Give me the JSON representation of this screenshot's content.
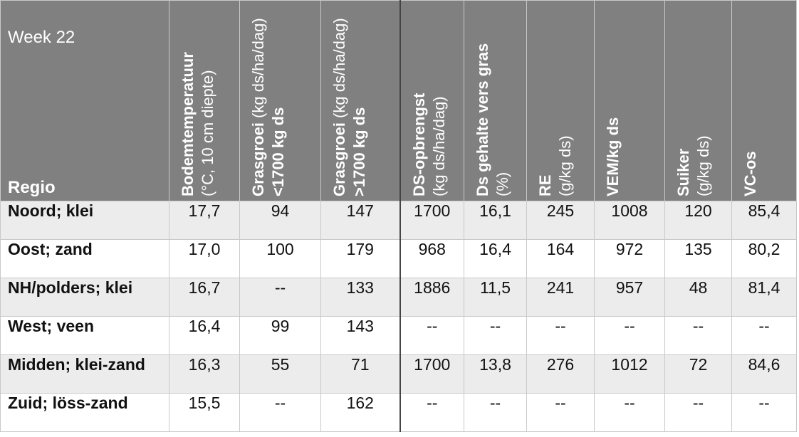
{
  "table": {
    "week_label": "Week 22",
    "regio_header": "Regio",
    "columns": [
      {
        "bold": "Bodemtemperatuur",
        "normal": "(°C, 10 cm diepte)"
      },
      {
        "bold": "Grasgroei",
        "normal": "(kg ds/ha/dag)",
        "bold_tail": "<1700 kg ds"
      },
      {
        "bold": "Grasgroei",
        "normal": "(kg ds/ha/dag)",
        "bold_tail": ">1700 kg ds"
      },
      {
        "bold": "DS-opbrengst",
        "normal": "(kg ds/ha/dag)"
      },
      {
        "bold": "Ds gehalte vers gras",
        "normal": "(%)"
      },
      {
        "bold": "RE",
        "normal": "(g/kg ds)"
      },
      {
        "bold": "VEM/kg ds",
        "normal": ""
      },
      {
        "bold": "Suiker",
        "normal": "(g/kg ds)"
      },
      {
        "bold": "VC-os",
        "normal": ""
      }
    ],
    "rows": [
      {
        "regio": "Noord; klei",
        "values": [
          "17,7",
          "94",
          "147",
          "1700",
          "16,1",
          "245",
          "1008",
          "120",
          "85,4"
        ]
      },
      {
        "regio": "Oost; zand",
        "values": [
          "17,0",
          "100",
          "179",
          "968",
          "16,4",
          "164",
          "972",
          "135",
          "80,2"
        ]
      },
      {
        "regio": "NH/polders; klei",
        "values": [
          "16,7",
          "--",
          "133",
          "1886",
          "11,5",
          "241",
          "957",
          "48",
          "81,4"
        ]
      },
      {
        "regio": "West; veen",
        "values": [
          "16,4",
          "99",
          "143",
          "--",
          "--",
          "--",
          "--",
          "--",
          "--"
        ]
      },
      {
        "regio": "Midden; klei-zand",
        "values": [
          "16,3",
          "55",
          "71",
          "1700",
          "13,8",
          "276",
          "1012",
          "72",
          "84,6"
        ]
      },
      {
        "regio": "Zuid; löss-zand",
        "values": [
          "15,5",
          "--",
          "162",
          "--",
          "--",
          "--",
          "--",
          "--",
          "--"
        ]
      }
    ],
    "colors": {
      "header_bg": "#808080",
      "row_alt_bg": "#ececec",
      "row_plain_bg": "#ffffff"
    }
  }
}
